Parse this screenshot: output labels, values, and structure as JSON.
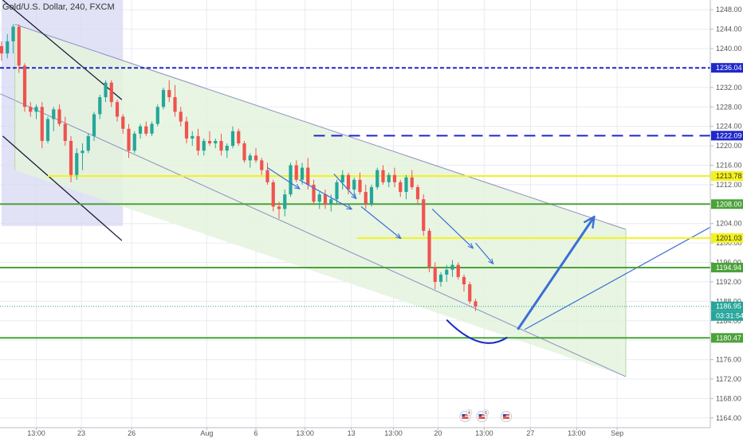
{
  "header": {
    "title": "Gold/U.S. Dollar, 240, FXCM"
  },
  "colors": {
    "up": "#26a69a",
    "down": "#ef5350",
    "channel_fill": "#e4f3dd",
    "consolidation_fill": "#d7d8f3",
    "grid": "#e7ebf0",
    "resistance_blue": "#1f28c8",
    "yellow": "#f4f21c",
    "green": "#4ca23a",
    "arrow_blue": "#3b6fd6"
  },
  "chart_data": {
    "type": "candlestick",
    "title": "Gold/U.S. Dollar, 240, FXCM",
    "x_range": [
      0,
      108
    ],
    "y_range": [
      1162,
      1250
    ],
    "price_ticks": [
      1248.0,
      1244.0,
      1240.0,
      1236.0,
      1232.0,
      1228.0,
      1224.0,
      1220.0,
      1216.0,
      1212.0,
      1208.0,
      1204.0,
      1200.0,
      1196.0,
      1192.0,
      1188.0,
      1184.0,
      1180.0,
      1176.0,
      1172.0,
      1168.0,
      1164.0
    ],
    "time_ticks": [
      {
        "x": 6.0,
        "label": "13:00"
      },
      {
        "x": 13.8,
        "label": "23"
      },
      {
        "x": 22.5,
        "label": "26"
      },
      {
        "x": 35.5,
        "label": "Aug"
      },
      {
        "x": 44.0,
        "label": "6"
      },
      {
        "x": 52.5,
        "label": "13:00"
      },
      {
        "x": 60.5,
        "label": "13"
      },
      {
        "x": 67.8,
        "label": "13:00"
      },
      {
        "x": 75.5,
        "label": "20"
      },
      {
        "x": 83.5,
        "label": "13:00"
      },
      {
        "x": 91.5,
        "label": "27"
      },
      {
        "x": 99.5,
        "label": "13:00"
      },
      {
        "x": 106.5,
        "label": "Sep"
      }
    ],
    "levels": [
      {
        "value": 1236.04,
        "label": "1236.04",
        "color": "#1f28c8",
        "style": "dashed",
        "x_start": 0,
        "x_end": 108
      },
      {
        "value": 1222.09,
        "label": "1222.09",
        "color": "#1f28c8",
        "style": "dashed-wide",
        "x_start": 54,
        "x_end": 108
      },
      {
        "value": 1213.78,
        "label": "1213.78",
        "color": "#f4f21c",
        "style": "solid",
        "x_start": 8,
        "x_end": 108
      },
      {
        "value": 1208.0,
        "label": "1208.00",
        "color": "#4ca23a",
        "style": "solid",
        "x_start": 0,
        "x_end": 108
      },
      {
        "value": 1201.03,
        "label": "1201.03",
        "color": "#f4f21c",
        "style": "solid",
        "x_start": 61.5,
        "x_end": 108
      },
      {
        "value": 1194.94,
        "label": "1194.94",
        "color": "#4ca23a",
        "style": "solid",
        "x_start": 0,
        "x_end": 108
      },
      {
        "value": 1180.47,
        "label": "1180.47",
        "color": "#4ca23a",
        "style": "solid",
        "x_start": 0,
        "x_end": 108
      }
    ],
    "current_price": {
      "value": 1186.95,
      "label": "1186.95",
      "countdown": "03:31:54"
    },
    "candles": [
      {
        "o": 1240.5,
        "h": 1241.5,
        "l": 1237.5,
        "c": 1239.0
      },
      {
        "o": 1239.0,
        "h": 1243.0,
        "l": 1238.0,
        "c": 1241.5
      },
      {
        "o": 1241.5,
        "h": 1245.0,
        "l": 1239.0,
        "c": 1244.5
      },
      {
        "o": 1244.5,
        "h": 1245.0,
        "l": 1235.0,
        "c": 1236.5
      },
      {
        "o": 1236.5,
        "h": 1237.0,
        "l": 1227.0,
        "c": 1228.0
      },
      {
        "o": 1228.0,
        "h": 1229.0,
        "l": 1226.0,
        "c": 1227.0
      },
      {
        "o": 1227.0,
        "h": 1228.5,
        "l": 1225.5,
        "c": 1228.0
      },
      {
        "o": 1228.0,
        "h": 1229.0,
        "l": 1219.5,
        "c": 1221.0
      },
      {
        "o": 1221.0,
        "h": 1226.0,
        "l": 1220.5,
        "c": 1225.5
      },
      {
        "o": 1225.5,
        "h": 1228.0,
        "l": 1223.0,
        "c": 1227.5
      },
      {
        "o": 1227.5,
        "h": 1228.5,
        "l": 1224.0,
        "c": 1224.5
      },
      {
        "o": 1224.5,
        "h": 1226.0,
        "l": 1220.0,
        "c": 1221.0
      },
      {
        "o": 1221.0,
        "h": 1222.0,
        "l": 1212.5,
        "c": 1214.0
      },
      {
        "o": 1214.0,
        "h": 1219.5,
        "l": 1213.0,
        "c": 1218.5
      },
      {
        "o": 1218.5,
        "h": 1220.5,
        "l": 1215.0,
        "c": 1219.0
      },
      {
        "o": 1219.0,
        "h": 1222.5,
        "l": 1218.5,
        "c": 1222.0
      },
      {
        "o": 1222.0,
        "h": 1227.0,
        "l": 1221.0,
        "c": 1226.5
      },
      {
        "o": 1226.5,
        "h": 1230.5,
        "l": 1225.5,
        "c": 1230.0
      },
      {
        "o": 1230.0,
        "h": 1233.5,
        "l": 1229.0,
        "c": 1233.0
      },
      {
        "o": 1233.0,
        "h": 1233.5,
        "l": 1228.0,
        "c": 1229.0
      },
      {
        "o": 1229.0,
        "h": 1229.5,
        "l": 1225.0,
        "c": 1226.0
      },
      {
        "o": 1226.0,
        "h": 1226.5,
        "l": 1222.5,
        "c": 1223.5
      },
      {
        "o": 1223.5,
        "h": 1224.5,
        "l": 1217.5,
        "c": 1219.0
      },
      {
        "o": 1219.0,
        "h": 1223.0,
        "l": 1218.5,
        "c": 1222.5
      },
      {
        "o": 1222.5,
        "h": 1224.5,
        "l": 1221.5,
        "c": 1224.0
      },
      {
        "o": 1224.0,
        "h": 1225.0,
        "l": 1222.0,
        "c": 1222.5
      },
      {
        "o": 1222.5,
        "h": 1225.0,
        "l": 1222.0,
        "c": 1224.5
      },
      {
        "o": 1224.5,
        "h": 1228.5,
        "l": 1224.0,
        "c": 1228.0
      },
      {
        "o": 1228.0,
        "h": 1232.0,
        "l": 1227.5,
        "c": 1231.5
      },
      {
        "o": 1231.5,
        "h": 1233.5,
        "l": 1229.0,
        "c": 1230.0
      },
      {
        "o": 1230.0,
        "h": 1232.5,
        "l": 1226.0,
        "c": 1227.0
      },
      {
        "o": 1227.0,
        "h": 1228.0,
        "l": 1224.0,
        "c": 1225.0
      },
      {
        "o": 1225.0,
        "h": 1226.0,
        "l": 1220.5,
        "c": 1221.5
      },
      {
        "o": 1221.5,
        "h": 1223.0,
        "l": 1220.0,
        "c": 1222.0
      },
      {
        "o": 1222.0,
        "h": 1223.5,
        "l": 1218.0,
        "c": 1219.0
      },
      {
        "o": 1219.0,
        "h": 1221.5,
        "l": 1218.0,
        "c": 1221.0
      },
      {
        "o": 1221.0,
        "h": 1223.0,
        "l": 1220.0,
        "c": 1220.5
      },
      {
        "o": 1220.5,
        "h": 1221.5,
        "l": 1219.5,
        "c": 1221.0
      },
      {
        "o": 1221.0,
        "h": 1222.5,
        "l": 1218.0,
        "c": 1219.0
      },
      {
        "o": 1219.0,
        "h": 1220.5,
        "l": 1217.5,
        "c": 1220.0
      },
      {
        "o": 1220.0,
        "h": 1224.0,
        "l": 1219.5,
        "c": 1223.0
      },
      {
        "o": 1223.0,
        "h": 1223.5,
        "l": 1220.0,
        "c": 1220.5
      },
      {
        "o": 1220.5,
        "h": 1221.0,
        "l": 1216.5,
        "c": 1217.0
      },
      {
        "o": 1217.0,
        "h": 1218.5,
        "l": 1215.5,
        "c": 1218.0
      },
      {
        "o": 1218.0,
        "h": 1219.5,
        "l": 1216.5,
        "c": 1217.0
      },
      {
        "o": 1217.0,
        "h": 1217.5,
        "l": 1214.0,
        "c": 1215.0
      },
      {
        "o": 1215.0,
        "h": 1216.5,
        "l": 1212.0,
        "c": 1212.5
      },
      {
        "o": 1212.5,
        "h": 1213.0,
        "l": 1206.5,
        "c": 1207.5
      },
      {
        "o": 1207.5,
        "h": 1208.5,
        "l": 1205.0,
        "c": 1207.0
      },
      {
        "o": 1207.0,
        "h": 1211.0,
        "l": 1205.5,
        "c": 1210.0
      },
      {
        "o": 1210.0,
        "h": 1216.5,
        "l": 1209.5,
        "c": 1216.0
      },
      {
        "o": 1216.0,
        "h": 1217.0,
        "l": 1212.5,
        "c": 1213.0
      },
      {
        "o": 1213.0,
        "h": 1216.5,
        "l": 1212.0,
        "c": 1215.5
      },
      {
        "o": 1215.5,
        "h": 1217.5,
        "l": 1211.0,
        "c": 1212.0
      },
      {
        "o": 1212.0,
        "h": 1213.0,
        "l": 1208.0,
        "c": 1208.5
      },
      {
        "o": 1208.5,
        "h": 1210.5,
        "l": 1207.0,
        "c": 1210.0
      },
      {
        "o": 1210.0,
        "h": 1211.0,
        "l": 1207.0,
        "c": 1208.0
      },
      {
        "o": 1208.0,
        "h": 1210.0,
        "l": 1206.5,
        "c": 1209.0
      },
      {
        "o": 1209.0,
        "h": 1213.0,
        "l": 1208.0,
        "c": 1212.5
      },
      {
        "o": 1212.5,
        "h": 1215.0,
        "l": 1211.0,
        "c": 1214.0
      },
      {
        "o": 1214.0,
        "h": 1214.5,
        "l": 1210.0,
        "c": 1211.0
      },
      {
        "o": 1211.0,
        "h": 1213.5,
        "l": 1209.5,
        "c": 1213.0
      },
      {
        "o": 1213.0,
        "h": 1214.5,
        "l": 1210.0,
        "c": 1210.5
      },
      {
        "o": 1210.5,
        "h": 1212.0,
        "l": 1207.0,
        "c": 1208.0
      },
      {
        "o": 1208.0,
        "h": 1212.0,
        "l": 1207.5,
        "c": 1211.5
      },
      {
        "o": 1211.5,
        "h": 1215.5,
        "l": 1211.0,
        "c": 1215.0
      },
      {
        "o": 1215.0,
        "h": 1216.0,
        "l": 1212.0,
        "c": 1212.5
      },
      {
        "o": 1212.5,
        "h": 1214.5,
        "l": 1211.5,
        "c": 1214.0
      },
      {
        "o": 1214.0,
        "h": 1215.5,
        "l": 1211.5,
        "c": 1212.5
      },
      {
        "o": 1212.5,
        "h": 1213.0,
        "l": 1209.5,
        "c": 1210.5
      },
      {
        "o": 1210.5,
        "h": 1214.0,
        "l": 1209.0,
        "c": 1213.5
      },
      {
        "o": 1213.5,
        "h": 1215.0,
        "l": 1211.0,
        "c": 1211.5
      },
      {
        "o": 1211.5,
        "h": 1212.0,
        "l": 1208.0,
        "c": 1209.0
      },
      {
        "o": 1209.0,
        "h": 1210.0,
        "l": 1201.5,
        "c": 1202.5
      },
      {
        "o": 1202.5,
        "h": 1203.0,
        "l": 1194.0,
        "c": 1195.0
      },
      {
        "o": 1195.0,
        "h": 1196.0,
        "l": 1190.5,
        "c": 1192.0
      },
      {
        "o": 1192.0,
        "h": 1194.0,
        "l": 1191.0,
        "c": 1193.5
      },
      {
        "o": 1193.5,
        "h": 1195.5,
        "l": 1192.0,
        "c": 1194.5
      },
      {
        "o": 1194.5,
        "h": 1196.5,
        "l": 1193.0,
        "c": 1195.5
      },
      {
        "o": 1195.5,
        "h": 1196.0,
        "l": 1192.5,
        "c": 1193.0
      },
      {
        "o": 1193.0,
        "h": 1193.5,
        "l": 1190.0,
        "c": 1191.5
      },
      {
        "o": 1191.5,
        "h": 1192.0,
        "l": 1187.5,
        "c": 1188.0
      },
      {
        "o": 1188.0,
        "h": 1188.5,
        "l": 1186.0,
        "c": 1186.95
      }
    ]
  },
  "time_axis_icons": [
    {
      "name": "event-flag-us-icon",
      "badge": "4"
    },
    {
      "name": "event-flag-us-icon",
      "badge": "6"
    },
    {
      "name": "event-flag-us-icon",
      "badge": ""
    }
  ]
}
